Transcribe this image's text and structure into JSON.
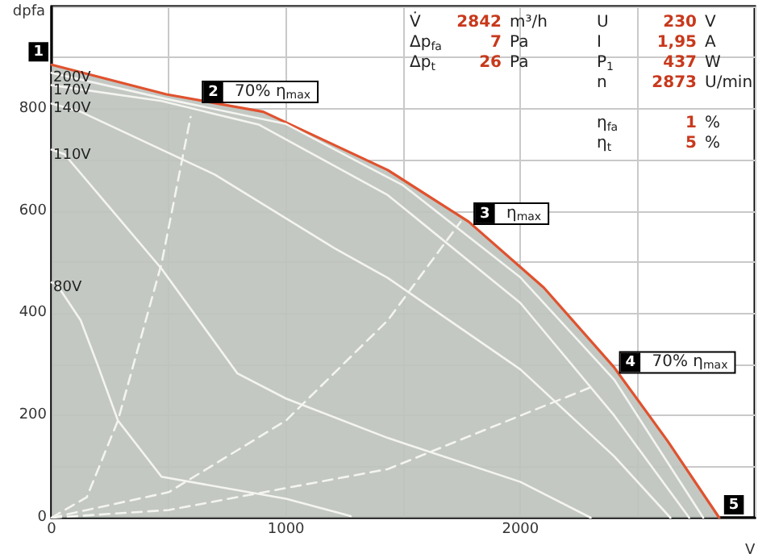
{
  "chart_data": {
    "type": "line",
    "xlabel": "V",
    "ylabel": "dpfa",
    "xlim": [
      0,
      3000
    ],
    "ylim": [
      0,
      1000
    ],
    "xticks": [
      0,
      {
        "value": 500,
        "label": null
      },
      1000,
      {
        "value": 1500,
        "label": null
      },
      2000,
      {
        "value": 2500,
        "label": null
      },
      {
        "value": 3000,
        "label": null
      }
    ],
    "yticks": [
      0,
      {
        "value": 100,
        "label": null
      },
      200,
      {
        "value": 300,
        "label": null
      },
      400,
      {
        "value": 500,
        "label": null
      },
      600,
      {
        "value": 700,
        "label": null
      },
      800,
      {
        "value": 900,
        "label": null
      },
      {
        "value": 1000,
        "label": null
      }
    ],
    "grid": true,
    "legend": false,
    "series": [
      {
        "type": "area",
        "color": "#e0522e",
        "x": [
          0,
          490,
          903,
          1434,
          1779,
          2100,
          2400,
          2628,
          2848
        ],
        "values": [
          886,
          828,
          794,
          680,
          579,
          450,
          294,
          150,
          0
        ]
      },
      {
        "name": "200V",
        "color": "#f4f4f0",
        "x": [
          0,
          500,
          1000,
          1500,
          2000,
          2400,
          2780
        ],
        "values": [
          870,
          818,
          770,
          650,
          470,
          270,
          0
        ]
      },
      {
        "name": "170V",
        "color": "#f4f4f0",
        "x": [
          0,
          469,
          883,
          1434,
          2000,
          2400,
          2720
        ],
        "values": [
          846,
          815,
          769,
          631,
          420,
          200,
          0
        ]
      },
      {
        "name": "140V",
        "color": "#f4f4f0",
        "x": [
          0,
          124,
          697,
          1207,
          1434,
          2000,
          2400,
          2640
        ],
        "values": [
          810,
          794,
          671,
          527,
          469,
          290,
          120,
          0
        ]
      },
      {
        "name": "110V",
        "color": "#f4f4f0",
        "x": [
          0,
          55,
          469,
          793,
          1000,
          1434,
          2000,
          2300
        ],
        "values": [
          720,
          711,
          487,
          282,
          233,
          156,
          70,
          0
        ]
      },
      {
        "name": "80V",
        "color": "#f4f4f0",
        "x": [
          0,
          21,
          124,
          193,
          283,
          469,
          1000,
          1276
        ],
        "values": [
          460,
          457,
          386,
          303,
          190,
          80,
          37,
          3
        ]
      },
      {
        "color": "#f4f4f0",
        "line_style": "dashed",
        "x": [
          0,
          150,
          283,
          469,
          593
        ],
        "values": [
          0,
          40,
          190,
          497,
          784
        ]
      },
      {
        "color": "#f4f4f0",
        "line_style": "dashed",
        "x": [
          0,
          500,
          1000,
          1434,
          1745
        ],
        "values": [
          0,
          50,
          190,
          386,
          579
        ]
      },
      {
        "color": "#f4f4f0",
        "line_style": "dashed",
        "x": [
          0,
          500,
          1000,
          1434,
          2310
        ],
        "values": [
          0,
          15,
          58,
          95,
          257
        ]
      }
    ],
    "annotations": [
      "V̇ 2842 m³/h",
      "Δp$_{fa}$ 7 Pa",
      "Δp$_{t}$ 26 Pa",
      "U 230 V",
      "I 1,95 A",
      "P$_{1}$ 437 W",
      "n 2873 U/min",
      "η$_{fa}$ 1 %",
      "η$_{t}$ 5 %",
      {
        "text": "1",
        "x": 0,
        "y": 886
      },
      {
        "text": "2 70% η$_{max}$",
        "x": 620,
        "y": 817
      },
      {
        "text": "3 η$_{max}$",
        "x": 1779,
        "y": 579
      },
      {
        "text": "4 70% η$_{max}$",
        "x": 2400,
        "y": 288
      },
      {
        "text": "5",
        "x": 2848,
        "y": 0
      }
    ]
  }
}
